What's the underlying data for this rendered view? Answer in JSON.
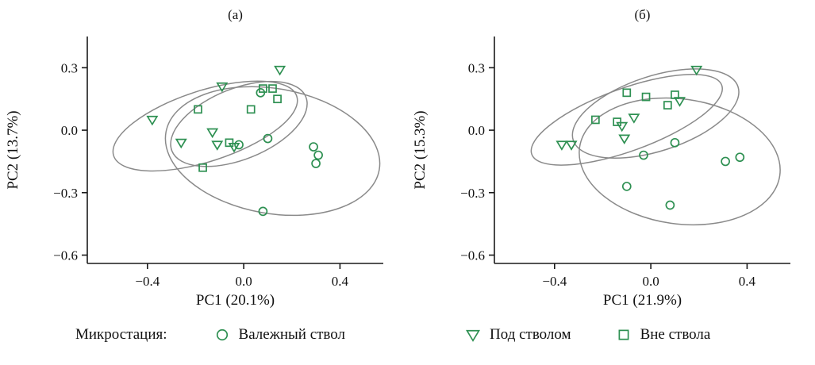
{
  "figure": {
    "panels": [
      {
        "id": "a"
      },
      {
        "id": "b"
      }
    ]
  },
  "legend": {
    "title": "Микростация:",
    "items": [
      {
        "label": "Валежный ствол",
        "marker": "circle"
      },
      {
        "label": "Под стволом",
        "marker": "triangle-down"
      },
      {
        "label": "Вне ствола",
        "marker": "square"
      }
    ]
  },
  "colors": {
    "marker": "#2E9052",
    "ellipse": "#8A8A8A",
    "axis": "#1A1A1A",
    "text": "#111111"
  },
  "chart_data": [
    {
      "type": "scatter",
      "title": "(а)",
      "xlabel": "PC1 (20.1%)",
      "ylabel": "PC2 (13.7%)",
      "xlim": [
        -0.65,
        0.58
      ],
      "ylim": [
        -0.64,
        0.45
      ],
      "xticks": [
        -0.4,
        0.0,
        0.4
      ],
      "yticks": [
        -0.6,
        -0.3,
        0.0,
        0.3
      ],
      "grid": false,
      "legend_position": "bottom",
      "series": [
        {
          "name": "Валежный ствол",
          "marker": "circle",
          "points": [
            [
              0.1,
              -0.04
            ],
            [
              0.07,
              0.18
            ],
            [
              0.29,
              -0.08
            ],
            [
              0.31,
              -0.12
            ],
            [
              0.3,
              -0.16
            ],
            [
              0.08,
              -0.39
            ],
            [
              -0.02,
              -0.07
            ]
          ]
        },
        {
          "name": "Под стволом",
          "marker": "triangle-down",
          "points": [
            [
              0.15,
              0.29
            ],
            [
              -0.09,
              0.21
            ],
            [
              -0.38,
              0.05
            ],
            [
              -0.26,
              -0.06
            ],
            [
              -0.13,
              -0.01
            ],
            [
              -0.11,
              -0.07
            ],
            [
              -0.04,
              -0.08
            ]
          ]
        },
        {
          "name": "Вне ствола",
          "marker": "square",
          "points": [
            [
              0.08,
              0.2
            ],
            [
              0.12,
              0.2
            ],
            [
              0.14,
              0.15
            ],
            [
              0.03,
              0.1
            ],
            [
              -0.19,
              0.1
            ],
            [
              -0.17,
              -0.18
            ],
            [
              -0.06,
              -0.06
            ]
          ]
        }
      ],
      "ellipses": [
        {
          "group": "Валежный ствол",
          "cx": 0.12,
          "cy": -0.1,
          "rx": 0.45,
          "ry": 0.3,
          "angle": -10
        },
        {
          "group": "Под стволом",
          "cx": -0.16,
          "cy": 0.02,
          "rx": 0.4,
          "ry": 0.17,
          "angle": 18
        },
        {
          "group": "Вне ствола",
          "cx": -0.02,
          "cy": 0.03,
          "rx": 0.3,
          "ry": 0.17,
          "angle": 22
        }
      ]
    },
    {
      "type": "scatter",
      "title": "(б)",
      "xlabel": "PC1 (21.9%)",
      "ylabel": "PC2 (15.3%)",
      "xlim": [
        -0.65,
        0.58
      ],
      "ylim": [
        -0.64,
        0.45
      ],
      "xticks": [
        -0.4,
        0.0,
        0.4
      ],
      "yticks": [
        -0.6,
        -0.3,
        0.0,
        0.3
      ],
      "grid": false,
      "legend_position": "bottom",
      "series": [
        {
          "name": "Валежный ствол",
          "marker": "circle",
          "points": [
            [
              -0.03,
              -0.12
            ],
            [
              0.1,
              -0.06
            ],
            [
              0.31,
              -0.15
            ],
            [
              0.37,
              -0.13
            ],
            [
              -0.1,
              -0.27
            ],
            [
              0.08,
              -0.36
            ]
          ]
        },
        {
          "name": "Под стволом",
          "marker": "triangle-down",
          "points": [
            [
              0.19,
              0.29
            ],
            [
              -0.37,
              -0.07
            ],
            [
              -0.33,
              -0.07
            ],
            [
              -0.12,
              0.02
            ],
            [
              -0.11,
              -0.04
            ],
            [
              0.12,
              0.14
            ],
            [
              -0.07,
              0.06
            ]
          ]
        },
        {
          "name": "Вне ствола",
          "marker": "square",
          "points": [
            [
              -0.1,
              0.18
            ],
            [
              -0.02,
              0.16
            ],
            [
              0.07,
              0.12
            ],
            [
              -0.23,
              0.05
            ],
            [
              -0.14,
              0.04
            ],
            [
              0.1,
              0.17
            ]
          ]
        }
      ],
      "ellipses": [
        {
          "group": "Валежный ствол",
          "cx": 0.12,
          "cy": -0.15,
          "rx": 0.42,
          "ry": 0.3,
          "angle": -8
        },
        {
          "group": "Под стволом",
          "cx": -0.1,
          "cy": 0.05,
          "rx": 0.42,
          "ry": 0.15,
          "angle": 20
        },
        {
          "group": "Вне ствола",
          "cx": 0.02,
          "cy": 0.08,
          "rx": 0.36,
          "ry": 0.18,
          "angle": 18
        }
      ]
    }
  ]
}
